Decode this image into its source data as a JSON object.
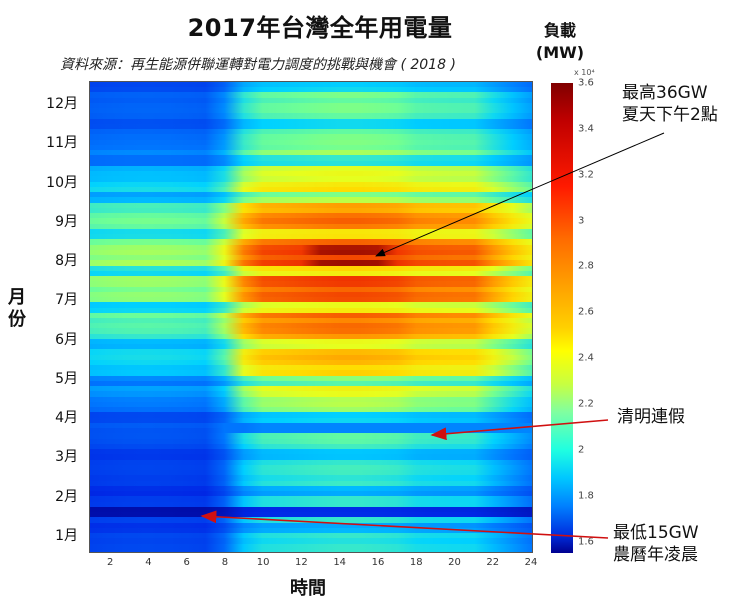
{
  "header": {
    "title": "2017年台灣全年用電量",
    "subtitle": "資料來源：再生能源併聯運轉對電力調度的挑戰與機會 ( 2018 )"
  },
  "colorbar": {
    "title_line1": "負載",
    "title_line2": "(MW)",
    "exponent": "x 10⁴",
    "ticks": [
      "3.6",
      "3.4",
      "3.2",
      "3",
      "2.8",
      "2.6",
      "2.4",
      "2.2",
      "2",
      "1.8",
      "1.6"
    ],
    "range": [
      1.55,
      3.6
    ]
  },
  "axes": {
    "y_title": "月份",
    "y_ticks": [
      "12月",
      "11月",
      "10月",
      "9月",
      "8月",
      "7月",
      "6月",
      "5月",
      "4月",
      "3月",
      "2月",
      "1月"
    ],
    "x_title": "時間",
    "x_ticks": [
      "2",
      "4",
      "6",
      "8",
      "10",
      "12",
      "14",
      "16",
      "18",
      "20",
      "22",
      "24"
    ]
  },
  "annotations": {
    "peak_line1": "最高36GW",
    "peak_line2": "夏天下午2點",
    "qingming": "清明連假",
    "low_line1": "最低15GW",
    "low_line2": "農曆年凌晨"
  },
  "colors": {
    "peak_arrow": "#000000",
    "event_arrow": "#d01010"
  },
  "chart_data": {
    "type": "heatmap",
    "title": "2017年台灣全年用電量",
    "subtitle": "資料來源：再生能源併聯運轉對電力調度的挑戰與機會 ( 2018 )",
    "xlabel": "時間",
    "ylabel": "月份",
    "colorbar_label": "負載 (MW) x 10^4",
    "x": [
      1,
      2,
      3,
      4,
      5,
      6,
      7,
      8,
      9,
      10,
      11,
      12,
      13,
      14,
      15,
      16,
      17,
      18,
      19,
      20,
      21,
      22,
      23,
      24
    ],
    "y": [
      "1月",
      "2月",
      "3月",
      "4月",
      "5月",
      "6月",
      "7月",
      "8月",
      "9月",
      "10月",
      "11月",
      "12月"
    ],
    "xlim": [
      1,
      24
    ],
    "zlim": [
      1.55,
      3.6
    ],
    "night_load_by_month": [
      1.85,
      1.8,
      1.85,
      1.95,
      2.25,
      2.45,
      2.6,
      2.65,
      2.55,
      2.3,
      2.0,
      1.95
    ],
    "day_load_by_month": [
      2.45,
      2.45,
      2.5,
      2.6,
      2.95,
      3.2,
      3.3,
      3.4,
      3.25,
      2.85,
      2.6,
      2.6
    ],
    "annotations": [
      {
        "text": "最高36GW 夏天下午2點",
        "x": 14.5,
        "month": "8月",
        "value_mw": 36000
      },
      {
        "text": "清明連假",
        "x": 18.5,
        "month": "4月",
        "value_mw": 21000
      },
      {
        "text": "最低15GW 農曆年凌晨",
        "x": 5,
        "month": "1月",
        "value_mw": 15000
      }
    ]
  }
}
